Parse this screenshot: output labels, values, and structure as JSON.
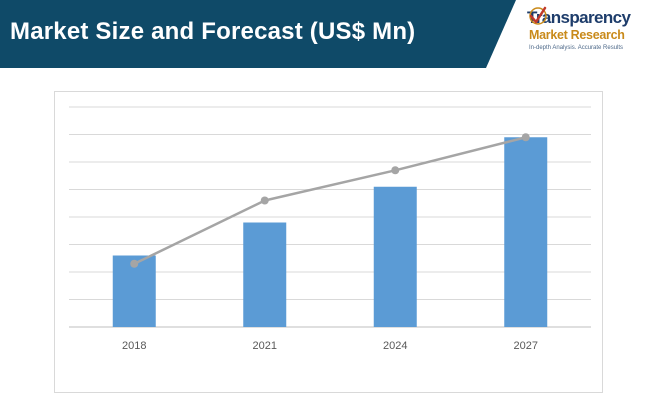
{
  "header": {
    "title": "Market Size and Forecast (US$ Mn)",
    "band_color": "#0f4a68",
    "text_color": "#ffffff"
  },
  "logo": {
    "line1": "Transparency",
    "line2": "Market Research",
    "tagline": "In-depth Analysis. Accurate Results",
    "icon": "checkmark-globe-icon",
    "primary_color": "#1e3d6b",
    "accent_color": "#c98a1a"
  },
  "chart_data": {
    "type": "bar",
    "categories": [
      "2018",
      "2021",
      "2024",
      "2027"
    ],
    "series": [
      {
        "type": "bar",
        "values": [
          2.6,
          3.8,
          5.1,
          6.9
        ],
        "color": "#5b9bd5"
      },
      {
        "type": "line",
        "values": [
          2.3,
          4.6,
          5.7,
          6.9
        ],
        "color": "#a5a5a5"
      }
    ],
    "ylim": [
      0,
      8
    ],
    "y_gridlines": 8,
    "grid": true,
    "title": "",
    "xlabel": "",
    "ylabel": ""
  }
}
